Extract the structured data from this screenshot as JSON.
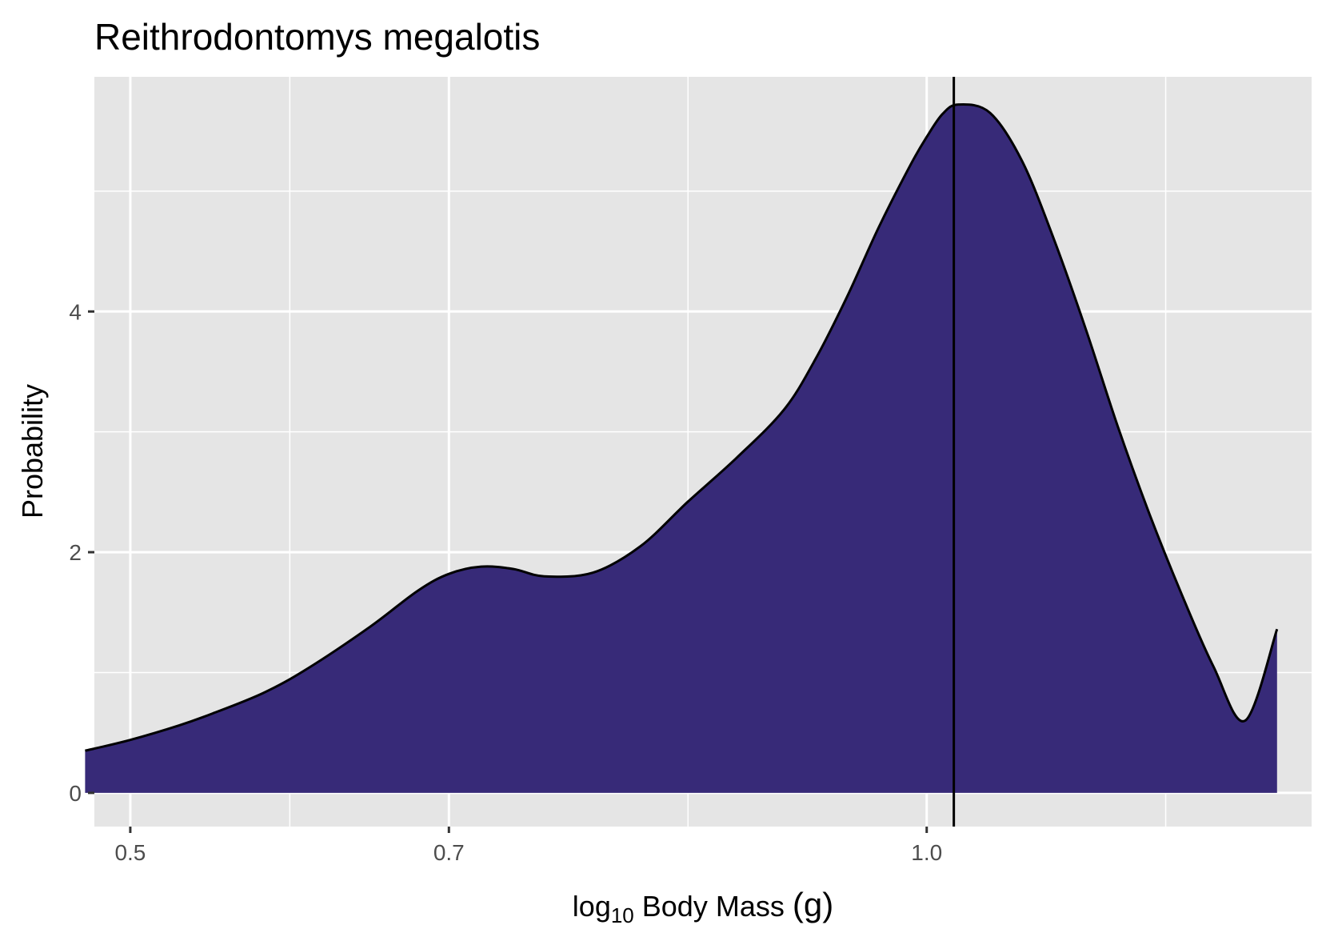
{
  "chart_data": {
    "type": "area",
    "title": "Reithrodontomys megalotis",
    "xlabel": {
      "prefix": "log",
      "subscript": "10",
      "rest": " Body Mass ",
      "unit": "(g)"
    },
    "ylabel": "Probability",
    "x_scale": "log10",
    "xlim": [
      3.0,
      17.45
    ],
    "ylim": [
      -0.28,
      5.95
    ],
    "x_major_ticks": [
      3.16,
      5.01,
      10.0
    ],
    "x_tick_labels": [
      "0.5",
      "0.7",
      "1.0"
    ],
    "x_minor_ticks": [
      3.98,
      7.08,
      14.13
    ],
    "y_major_ticks": [
      0,
      2,
      4
    ],
    "y_tick_labels": [
      "0",
      "2",
      "4"
    ],
    "y_minor_ticks": [
      1,
      3,
      5
    ],
    "grid": true,
    "background": "#e5e5e5",
    "fill_color": "#372a78",
    "line_color": "#000000",
    "reference_line_x": 10.4,
    "series": [
      {
        "x": [
          2.96,
          3.16,
          3.39,
          3.56,
          3.83,
          4.08,
          4.47,
          4.79,
          5.01,
          5.25,
          5.5,
          5.75,
          6.17,
          6.61,
          7.08,
          7.59,
          8.13,
          8.51,
          8.91,
          9.33,
          9.77,
          10.0,
          10.23,
          10.47,
          10.96,
          11.48,
          12.02,
          12.59,
          13.18,
          13.8,
          14.45,
          15.14,
          15.85,
          16.6
        ],
        "y": [
          0.35,
          0.44,
          0.56,
          0.66,
          0.83,
          1.03,
          1.38,
          1.68,
          1.82,
          1.88,
          1.86,
          1.8,
          1.83,
          2.05,
          2.42,
          2.78,
          3.18,
          3.6,
          4.12,
          4.7,
          5.22,
          5.45,
          5.64,
          5.72,
          5.65,
          5.25,
          4.6,
          3.85,
          3.05,
          2.32,
          1.66,
          1.05,
          0.6,
          1.36
        ]
      }
    ]
  }
}
